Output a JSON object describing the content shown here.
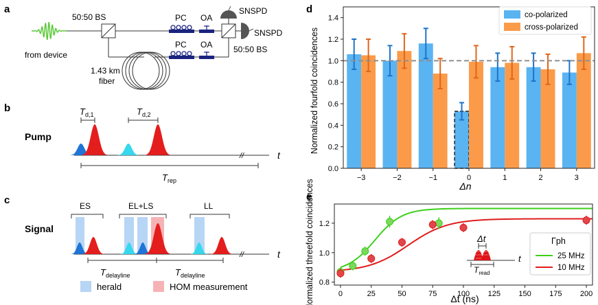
{
  "panels": {
    "a": {
      "letter": "a",
      "labels": {
        "bs_top": "50:50 BS",
        "bs_right": "50:50 BS",
        "from_device": "from device",
        "pc_top": "PC",
        "pc_bottom": "PC",
        "oa_top": "OA",
        "oa_bottom": "OA",
        "snspd_top": "SNSPD",
        "snspd_right": "SNSPD",
        "fiber_length": "1.43 km",
        "fiber_word": "fiber"
      },
      "colors": {
        "pulse": "#5cc83a",
        "device": "#1a237e",
        "detector": "#555555"
      }
    },
    "b": {
      "letter": "b",
      "row_label": "Pump",
      "td1_main": "T",
      "td1_sub": "d,1",
      "td2_main": "T",
      "td2_sub": "d,2",
      "axis_label": "t",
      "trep_main": "T",
      "trep_sub": "rep",
      "break_mark": "//"
    },
    "c": {
      "letter": "c",
      "row_label": "Signal",
      "groups": [
        "ES",
        "EL+LS",
        "LL"
      ],
      "delay_main": "T",
      "delay_sub": "delayline",
      "axis_label": "t",
      "legend": {
        "herald": "herald",
        "hom": "HOM measurement"
      },
      "colors": {
        "herald": "#b7d5f5",
        "hom": "#f6b3b5",
        "early_pulse": "#1f74d6",
        "late_pulse": "#e41d1d",
        "cyan_pulse": "#36d8ec"
      }
    },
    "d": {
      "letter": "d",
      "chart_data": {
        "type": "bar",
        "title": "",
        "xlabel": "Δn",
        "ylabel": "Normalized fourfold coincidences",
        "categories": [
          "−3",
          "−2",
          "−1",
          "0",
          "1",
          "2",
          "3"
        ],
        "ylim": [
          0.0,
          1.5
        ],
        "yticks": [
          "0.0",
          "0.2",
          "0.4",
          "0.6",
          "0.8",
          "1.0",
          "1.2",
          "1.4"
        ],
        "reference_line": 1.0,
        "legend_position": "top-right",
        "series": [
          {
            "name": "co-polarized",
            "color": "#5ab4f2",
            "err_color": "#1e73c8",
            "values": [
              1.06,
              1.0,
              1.16,
              0.53,
              0.94,
              0.94,
              0.89
            ],
            "errors": [
              0.14,
              0.14,
              0.14,
              0.08,
              0.13,
              0.13,
              0.11
            ]
          },
          {
            "name": "cross-polarized",
            "color": "#fb9b4a",
            "err_color": "#e0651a",
            "values": [
              1.05,
              1.09,
              0.88,
              0.99,
              0.98,
              0.92,
              1.07
            ],
            "errors": [
              0.15,
              0.16,
              0.14,
              0.15,
              0.15,
              0.14,
              0.15
            ]
          }
        ],
        "highlight": {
          "category": "0",
          "series": "co-polarized",
          "style": "dashed outline"
        }
      }
    },
    "e": {
      "letter": "e",
      "chart_data": {
        "type": "scatter",
        "title": "",
        "xlabel": "Δt (ns)",
        "ylabel": "Normalized threefold coincidences",
        "xlim": [
          -5,
          205
        ],
        "ylim": [
          0.78,
          1.33
        ],
        "xticks": [
          "0",
          "25",
          "50",
          "75",
          "100",
          "125",
          "150",
          "175",
          "200"
        ],
        "yticks": [
          "0.8",
          "1.0",
          "1.2"
        ],
        "legend_title": "Γph",
        "legend_position": "bottom-right",
        "series": [
          {
            "name": "25 MHz",
            "color": "#3ecf1c",
            "marker_color": "#7bd85b",
            "x": [
              0,
              10,
              20,
              40,
              80
            ],
            "y": [
              0.87,
              0.91,
              1.01,
              1.21,
              1.2
            ],
            "err": [
              0.03,
              0.03,
              0.03,
              0.04,
              0.04
            ],
            "fit": {
              "base": 0.87,
              "amp": 0.43,
              "center": 28,
              "width": 11
            }
          },
          {
            "name": "10 MHz",
            "color": "#df1c1c",
            "marker_color": "#e2464a",
            "x": [
              0,
              25,
              50,
              75,
              100,
              200
            ],
            "y": [
              0.86,
              0.96,
              1.07,
              1.19,
              1.17,
              1.22
            ],
            "err": [
              0.03,
              0.03,
              0.03,
              0.03,
              0.03,
              0.03
            ],
            "fit": {
              "base": 0.87,
              "amp": 0.36,
              "center": 55,
              "width": 16
            }
          }
        ],
        "inset": {
          "dt_label": "Δt",
          "t_label": "t",
          "tread_main": "T",
          "tread_sub": "read"
        }
      }
    }
  }
}
